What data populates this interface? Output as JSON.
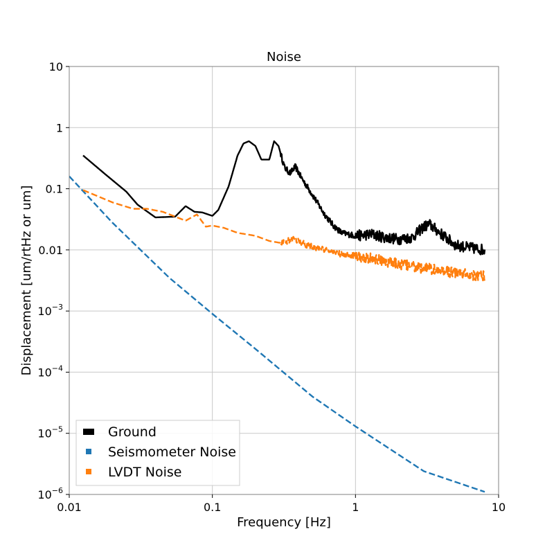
{
  "chart_data": {
    "type": "line",
    "title": "Noise",
    "xlabel": "Frequency [Hz]",
    "ylabel": "Displacement [um/rtHz or um]",
    "xscale": "log",
    "yscale": "log",
    "xlim": [
      0.01,
      10
    ],
    "ylim": [
      1e-06,
      10
    ],
    "grid": true,
    "legend_position": "lower-left",
    "x_tick_labels": [
      "0.01",
      "0.1",
      "1",
      "10"
    ],
    "y_tick_labels": [
      {
        "base": "10",
        "exp": "−6"
      },
      {
        "base": "10",
        "exp": "−5"
      },
      {
        "base": "10",
        "exp": "−4"
      },
      {
        "base": "10",
        "exp": "−3"
      },
      {
        "base": "0.01",
        "exp": ""
      },
      {
        "base": "0.1",
        "exp": ""
      },
      {
        "base": "1",
        "exp": ""
      },
      {
        "base": "10",
        "exp": ""
      }
    ],
    "series": [
      {
        "name": "Ground",
        "color": "#000000",
        "style": "solid",
        "x": [
          0.0125,
          0.018,
          0.025,
          0.03,
          0.04,
          0.055,
          0.065,
          0.075,
          0.085,
          0.1,
          0.11,
          0.13,
          0.15,
          0.165,
          0.18,
          0.2,
          0.22,
          0.25,
          0.27,
          0.29,
          0.32,
          0.35,
          0.38,
          0.42,
          0.5,
          0.6,
          0.7,
          0.8,
          1.0,
          1.3,
          1.6,
          2.0,
          2.5,
          3.0,
          3.3,
          4.0,
          5.0,
          6.0,
          8.0
        ],
        "y": [
          0.35,
          0.17,
          0.09,
          0.055,
          0.034,
          0.035,
          0.052,
          0.042,
          0.041,
          0.036,
          0.045,
          0.11,
          0.35,
          0.55,
          0.6,
          0.5,
          0.3,
          0.3,
          0.6,
          0.5,
          0.22,
          0.18,
          0.23,
          0.15,
          0.08,
          0.04,
          0.025,
          0.019,
          0.017,
          0.018,
          0.016,
          0.015,
          0.016,
          0.024,
          0.026,
          0.018,
          0.012,
          0.011,
          0.01
        ]
      },
      {
        "name": "Seismometer Noise",
        "color": "#1f77b4",
        "style": "dashed",
        "x": [
          0.01,
          0.02,
          0.05,
          0.1,
          0.2,
          0.5,
          1.0,
          3.0,
          8.0
        ],
        "y": [
          0.16,
          0.028,
          0.0035,
          0.0009,
          0.00024,
          4e-05,
          1.3e-05,
          2.4e-06,
          1.1e-06
        ]
      },
      {
        "name": "LVDT Noise",
        "color": "#ff7f0e",
        "style": "dashed",
        "x": [
          0.0125,
          0.02,
          0.028,
          0.035,
          0.045,
          0.055,
          0.065,
          0.078,
          0.09,
          0.1,
          0.12,
          0.15,
          0.2,
          0.25,
          0.3,
          0.38,
          0.45,
          0.6,
          0.8,
          1.0,
          1.5,
          2.0,
          3.0,
          4.0,
          5.0,
          6.0,
          8.0
        ],
        "y": [
          0.095,
          0.06,
          0.047,
          0.047,
          0.042,
          0.035,
          0.03,
          0.038,
          0.024,
          0.025,
          0.023,
          0.019,
          0.017,
          0.014,
          0.013,
          0.015,
          0.012,
          0.01,
          0.0085,
          0.008,
          0.0068,
          0.0058,
          0.005,
          0.0046,
          0.0042,
          0.004,
          0.0038
        ]
      }
    ]
  }
}
